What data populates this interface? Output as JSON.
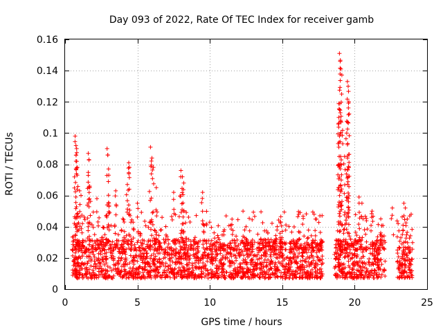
{
  "chart_data": {
    "type": "scatter",
    "title": "Day 093 of 2022, Rate Of TEC Index for receiver gamb",
    "xlabel": "GPS time / hours",
    "ylabel": "ROTI / TECUs",
    "xlim": [
      0,
      25
    ],
    "ylim": [
      0,
      0.16
    ],
    "x_ticks": [
      0,
      5,
      10,
      15,
      20,
      25
    ],
    "x_tick_labels": [
      "0",
      "5",
      "10",
      "15",
      "20",
      "25"
    ],
    "y_ticks": [
      0,
      0.02,
      0.04,
      0.06,
      0.08,
      0.1,
      0.12,
      0.14,
      0.16
    ],
    "y_tick_labels": [
      "0",
      "0.02",
      "0.04",
      "0.06",
      "0.08",
      "0.1",
      "0.12",
      "0.14",
      "0.16"
    ],
    "grid": true,
    "marker": "+",
    "color": "#ff0000",
    "data_segments": [
      {
        "x_start": 0.5,
        "x_end": 17.8,
        "base_min": 0.005,
        "base_max": 0.03
      },
      {
        "x_start": 18.6,
        "x_end": 22.1,
        "base_min": 0.005,
        "base_max": 0.03
      },
      {
        "x_start": 22.9,
        "x_end": 24.0,
        "base_min": 0.005,
        "base_max": 0.03
      }
    ],
    "series": [
      {
        "name": "ROTI",
        "peaks": [
          {
            "x": 0.7,
            "y": 0.098
          },
          {
            "x": 0.75,
            "y": 0.092
          },
          {
            "x": 0.8,
            "y": 0.09
          },
          {
            "x": 0.85,
            "y": 0.078
          },
          {
            "x": 1.0,
            "y": 0.063
          },
          {
            "x": 1.1,
            "y": 0.06
          },
          {
            "x": 1.6,
            "y": 0.087
          },
          {
            "x": 1.65,
            "y": 0.083
          },
          {
            "x": 1.7,
            "y": 0.066
          },
          {
            "x": 2.2,
            "y": 0.058
          },
          {
            "x": 2.9,
            "y": 0.09
          },
          {
            "x": 2.95,
            "y": 0.086
          },
          {
            "x": 3.0,
            "y": 0.077
          },
          {
            "x": 3.5,
            "y": 0.063
          },
          {
            "x": 4.4,
            "y": 0.081
          },
          {
            "x": 4.45,
            "y": 0.078
          },
          {
            "x": 4.3,
            "y": 0.067
          },
          {
            "x": 5.0,
            "y": 0.055
          },
          {
            "x": 5.9,
            "y": 0.091
          },
          {
            "x": 6.0,
            "y": 0.084
          },
          {
            "x": 6.1,
            "y": 0.078
          },
          {
            "x": 6.3,
            "y": 0.065
          },
          {
            "x": 7.5,
            "y": 0.062
          },
          {
            "x": 8.0,
            "y": 0.076
          },
          {
            "x": 8.1,
            "y": 0.072
          },
          {
            "x": 8.2,
            "y": 0.068
          },
          {
            "x": 9.5,
            "y": 0.062
          },
          {
            "x": 11.0,
            "y": 0.038
          },
          {
            "x": 12.5,
            "y": 0.04
          },
          {
            "x": 14.0,
            "y": 0.036
          },
          {
            "x": 15.0,
            "y": 0.037
          },
          {
            "x": 16.5,
            "y": 0.034
          },
          {
            "x": 17.2,
            "y": 0.048
          },
          {
            "x": 17.6,
            "y": 0.047
          },
          {
            "x": 18.95,
            "y": 0.151
          },
          {
            "x": 19.0,
            "y": 0.146
          },
          {
            "x": 19.05,
            "y": 0.141
          },
          {
            "x": 19.1,
            "y": 0.125
          },
          {
            "x": 18.9,
            "y": 0.11
          },
          {
            "x": 18.95,
            "y": 0.098
          },
          {
            "x": 19.5,
            "y": 0.133
          },
          {
            "x": 19.55,
            "y": 0.13
          },
          {
            "x": 19.6,
            "y": 0.12
          },
          {
            "x": 19.45,
            "y": 0.1
          },
          {
            "x": 19.6,
            "y": 0.078
          },
          {
            "x": 19.3,
            "y": 0.085
          },
          {
            "x": 20.3,
            "y": 0.059
          },
          {
            "x": 20.5,
            "y": 0.055
          },
          {
            "x": 21.2,
            "y": 0.05
          },
          {
            "x": 21.8,
            "y": 0.045
          },
          {
            "x": 22.6,
            "y": 0.052
          },
          {
            "x": 23.4,
            "y": 0.055
          },
          {
            "x": 23.5,
            "y": 0.052
          },
          {
            "x": 23.0,
            "y": 0.042
          }
        ]
      }
    ]
  }
}
